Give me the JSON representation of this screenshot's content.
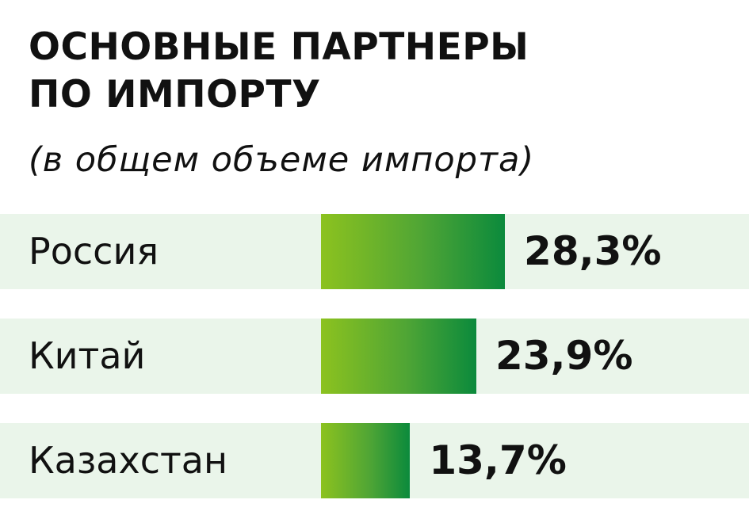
{
  "chart_data": {
    "type": "bar",
    "orientation": "horizontal",
    "title": "ОСНОВНЫЕ ПАРТНЕРЫ ПО ИМПОРТУ",
    "title_lines": [
      "ОСНОВНЫЕ ПАРТНЕРЫ",
      "ПО ИМПОРТУ"
    ],
    "subtitle": "(в общем объеме импорта)",
    "categories": [
      "Россия",
      "Китай",
      "Казахстан"
    ],
    "values": [
      28.3,
      23.9,
      13.7
    ],
    "value_labels": [
      "28,3%",
      "23,9%",
      "13,7%"
    ],
    "unit": "%",
    "xlim": [
      0,
      40
    ],
    "grid": false,
    "legend": "none",
    "colors": {
      "bar_gradient_start": "#8cc21f",
      "bar_gradient_mid": "#4fa535",
      "bar_gradient_end": "#0b8a3c",
      "row_background": "#eaf5ea",
      "text": "#111111"
    }
  }
}
